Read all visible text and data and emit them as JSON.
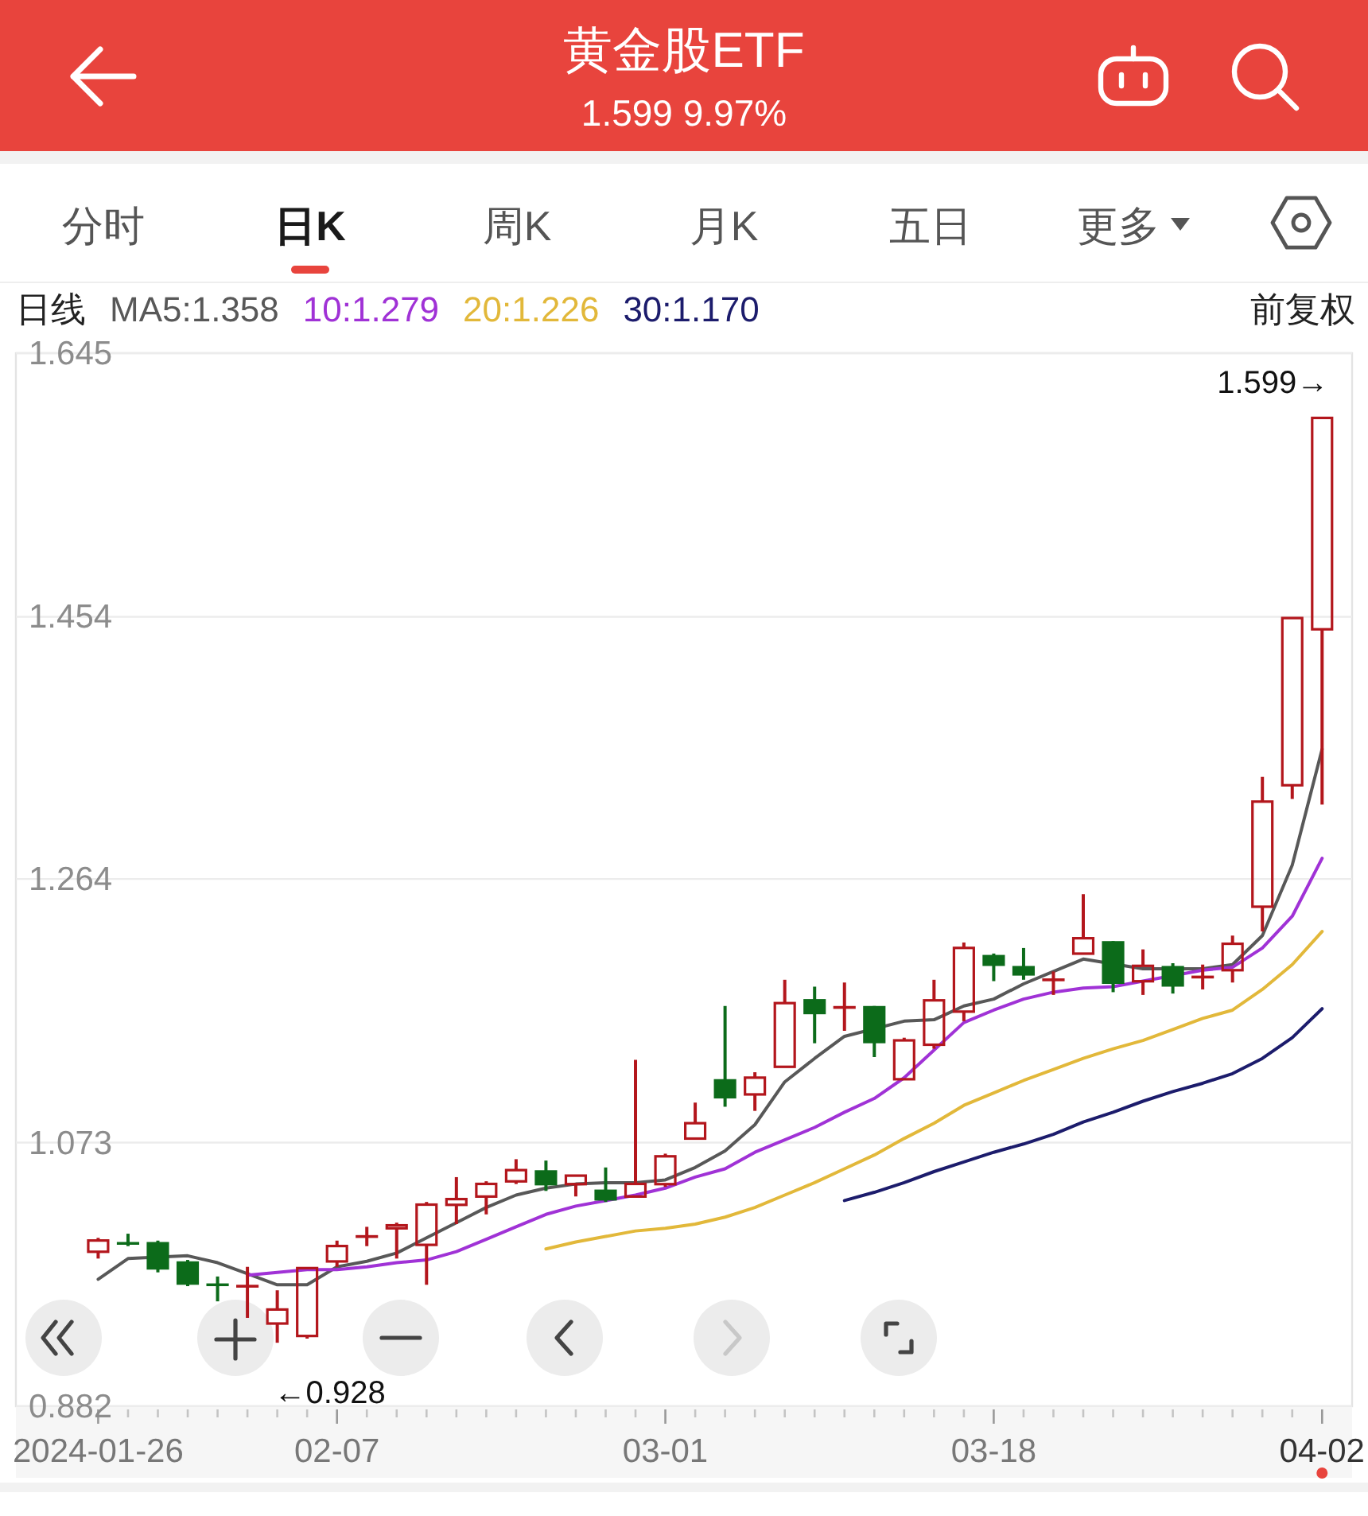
{
  "chart_data": {
    "type": "candlestick",
    "title": "黄金股ETF",
    "subtitle": "1.599 9.97%",
    "legend_title": "日线",
    "legend": "top left",
    "grid": "y",
    "categories": [
      "2024-01-26",
      null,
      null,
      null,
      null,
      null,
      null,
      null,
      "02-07",
      null,
      null,
      null,
      null,
      null,
      null,
      null,
      null,
      null,
      null,
      "03-01",
      null,
      null,
      null,
      null,
      null,
      null,
      null,
      null,
      null,
      null,
      "03-18",
      null,
      null,
      null,
      null,
      null,
      null,
      null,
      null,
      null,
      null,
      "04-02"
    ],
    "ylim": [
      0.882,
      1.645
    ],
    "yticks": [
      0.882,
      1.073,
      1.264,
      1.454,
      1.645
    ],
    "series": [
      {
        "colors": [
          "#b3161c",
          "#0c6b1a",
          "#0c6b1a",
          "#0c6b1a",
          "#0c6b1a",
          "#b3161c",
          "#b3161c",
          "#b3161c",
          "#b3161c",
          "#b3161c",
          "#b3161c",
          "#b3161c",
          "#b3161c",
          "#b3161c",
          "#b3161c",
          "#0c6b1a",
          "#b3161c",
          "#0c6b1a",
          "#b3161c",
          "#b3161c",
          "#b3161c",
          "#0c6b1a",
          "#b3161c",
          "#b3161c",
          "#0c6b1a",
          "#b3161c",
          "#0c6b1a",
          "#b3161c",
          "#b3161c",
          "#b3161c",
          "#0c6b1a",
          "#0c6b1a",
          "#b3161c",
          "#b3161c",
          "#0c6b1a",
          "#b3161c",
          "#0c6b1a",
          "#b3161c",
          "#b3161c",
          "#b3161c",
          "#b3161c",
          "#b3161c"
        ],
        "ohlc": [
          [
            0.993,
            1.004,
            0.989,
            1.003
          ],
          [
            1.001,
            1.007,
            0.998,
            0.999
          ],
          [
            1.001,
            1.002,
            0.979,
            0.981
          ],
          [
            0.987,
            0.988,
            0.969,
            0.97
          ],
          [
            0.971,
            0.976,
            0.958,
            0.969
          ],
          [
            0.968,
            0.983,
            0.946,
            0.97
          ],
          [
            0.941,
            0.966,
            0.928,
            0.953
          ],
          [
            0.932,
            0.983,
            0.931,
            0.983
          ],
          [
            0.986,
            1.002,
            0.983,
            0.999
          ],
          [
            1.004,
            1.012,
            0.998,
            1.006
          ],
          [
            1.01,
            1.015,
            0.989,
            1.014
          ],
          [
            0.998,
            1.03,
            0.97,
            1.029
          ],
          [
            1.027,
            1.048,
            1.014,
            1.033
          ],
          [
            1.033,
            1.045,
            1.021,
            1.044
          ],
          [
            1.044,
            1.061,
            1.043,
            1.054
          ],
          [
            1.053,
            1.06,
            1.038,
            1.042
          ],
          [
            1.042,
            1.05,
            1.034,
            1.05
          ],
          [
            1.039,
            1.055,
            1.03,
            1.031
          ],
          [
            1.033,
            1.133,
            1.033,
            1.044
          ],
          [
            1.042,
            1.065,
            1.041,
            1.064
          ],
          [
            1.075,
            1.102,
            1.075,
            1.088
          ],
          [
            1.119,
            1.172,
            1.099,
            1.105
          ],
          [
            1.107,
            1.124,
            1.096,
            1.121
          ],
          [
            1.127,
            1.191,
            1.127,
            1.175
          ],
          [
            1.177,
            1.186,
            1.145,
            1.166
          ],
          [
            1.17,
            1.189,
            1.154,
            1.172
          ],
          [
            1.172,
            1.172,
            1.135,
            1.145
          ],
          [
            1.118,
            1.149,
            1.118,
            1.148
          ],
          [
            1.143,
            1.191,
            1.141,
            1.177
          ],
          [
            1.167,
            1.218,
            1.161,
            1.215
          ],
          [
            1.209,
            1.21,
            1.19,
            1.201
          ],
          [
            1.201,
            1.214,
            1.191,
            1.194
          ],
          [
            1.19,
            1.197,
            1.18,
            1.192
          ],
          [
            1.209,
            1.253,
            1.209,
            1.222
          ],
          [
            1.219,
            1.219,
            1.182,
            1.188
          ],
          [
            1.189,
            1.213,
            1.18,
            1.202
          ],
          [
            1.201,
            1.203,
            1.181,
            1.186
          ],
          [
            1.192,
            1.202,
            1.184,
            1.194
          ],
          [
            1.197,
            1.223,
            1.189,
            1.218
          ],
          [
            1.243,
            1.338,
            1.226,
            1.321
          ],
          [
            1.331,
            1.454,
            1.322,
            1.454
          ],
          [
            1.444,
            1.599,
            1.318,
            1.599
          ]
        ]
      },
      {
        "type": "line",
        "name": "MA5:1.358",
        "color": "#585858",
        "values": [
          0.974,
          0.989,
          null,
          0.991,
          0.986,
          0.978,
          0.97,
          0.97,
          0.983,
          0.987,
          0.993,
          1.004,
          1.015,
          1.026,
          1.035,
          1.04,
          1.043,
          1.044,
          1.044,
          1.046,
          1.055,
          1.067,
          1.086,
          1.117,
          1.134,
          1.15,
          null,
          1.161,
          1.162,
          1.172,
          1.177,
          1.188,
          1.197,
          1.206,
          null,
          1.199,
          null,
          1.199,
          1.202,
          1.223,
          1.274,
          1.358
        ]
      },
      {
        "type": "line",
        "name": "10:1.279",
        "color": "#a032d6",
        "values": [
          null,
          null,
          null,
          null,
          null,
          0.977,
          0.979,
          0.981,
          0.981,
          0.983,
          0.986,
          0.988,
          0.994,
          1.003,
          1.012,
          1.021,
          1.027,
          1.031,
          1.035,
          1.04,
          1.048,
          1.054,
          1.066,
          1.075,
          1.084,
          1.095,
          1.105,
          1.12,
          1.14,
          1.16,
          1.169,
          1.177,
          1.182,
          1.185,
          1.186,
          1.19,
          null,
          1.198,
          1.2,
          1.214,
          1.237,
          1.279
        ]
      },
      {
        "type": "line",
        "name": "20:1.226",
        "color": "#e2b83a",
        "values": [
          null,
          null,
          null,
          null,
          null,
          null,
          null,
          null,
          null,
          null,
          null,
          null,
          null,
          null,
          null,
          0.996,
          1.001,
          1.005,
          1.009,
          1.011,
          1.014,
          1.019,
          1.026,
          1.035,
          1.044,
          1.054,
          1.064,
          1.076,
          1.087,
          1.1,
          1.109,
          1.118,
          1.126,
          1.134,
          1.141,
          1.147,
          1.155,
          1.163,
          1.169,
          1.184,
          1.202,
          1.226
        ]
      },
      {
        "type": "line",
        "name": "30:1.170",
        "color": "#1c1c6c",
        "values": [
          null,
          null,
          null,
          null,
          null,
          null,
          null,
          null,
          null,
          null,
          null,
          null,
          null,
          null,
          null,
          null,
          null,
          null,
          null,
          null,
          null,
          null,
          null,
          null,
          null,
          1.031,
          1.037,
          1.044,
          1.052,
          1.059,
          1.066,
          1.072,
          1.079,
          1.088,
          1.095,
          1.103,
          1.11,
          1.116,
          1.123,
          1.134,
          1.149,
          1.17
        ]
      }
    ],
    "annotations": [
      "分时",
      "日K",
      "周K",
      "月K",
      "五日",
      "更多",
      "前复权",
      {
        "text": "1.599→",
        "x": "04-02",
        "y": 1.599
      },
      "←0.928"
    ]
  }
}
